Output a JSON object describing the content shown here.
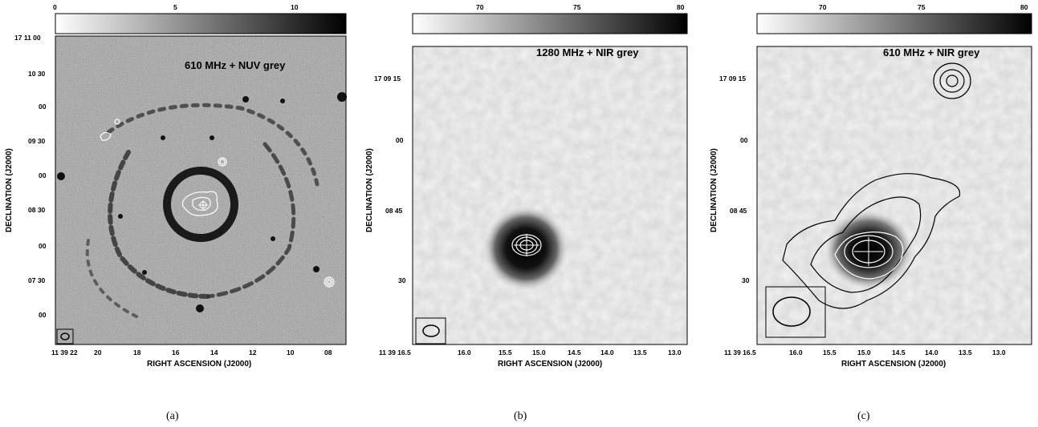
{
  "panels": [
    {
      "id": "a",
      "annotation": "610  MHz + NUV grey",
      "colorbar_ticks": [
        "0",
        "5",
        "10"
      ],
      "y_ticks": [
        "17 11 00",
        "10 30",
        "00",
        "09 30",
        "00",
        "08 30",
        "00",
        "07 30",
        "00"
      ],
      "x_ticks": [
        "11 39 22",
        "20",
        "18",
        "16",
        "14",
        "12",
        "10",
        "08"
      ],
      "xlabel": "RIGHT ASCENSION (J2000)",
      "ylabel": "DECLINATION (J2000)",
      "caption": "(a)"
    },
    {
      "id": "b",
      "annotation": "1280 MHz + NIR grey",
      "colorbar_ticks": [
        "70",
        "75",
        "80"
      ],
      "y_ticks": [
        "17 09 15",
        "00",
        "08 45",
        "30"
      ],
      "x_ticks": [
        "11 39 16.5",
        "16.0",
        "15.5",
        "15.0",
        "14.5",
        "14.0",
        "13.5",
        "13.0"
      ],
      "xlabel": "RIGHT ASCENSION (J2000)",
      "ylabel": "DECLINATION (J2000)",
      "caption": "(b)"
    },
    {
      "id": "c",
      "annotation": "610 MHz + NIR grey",
      "colorbar_ticks": [
        "70",
        "75",
        "80"
      ],
      "y_ticks": [
        "17 09 15",
        "00",
        "08 45",
        "30"
      ],
      "x_ticks": [
        "11 39 16.5",
        "16.0",
        "15.5",
        "15.0",
        "14.5",
        "14.0",
        "13.5",
        "13.0"
      ],
      "xlabel": "RIGHT ASCENSION (J2000)",
      "ylabel": "DECLINATION (J2000)",
      "caption": "(c)"
    }
  ]
}
